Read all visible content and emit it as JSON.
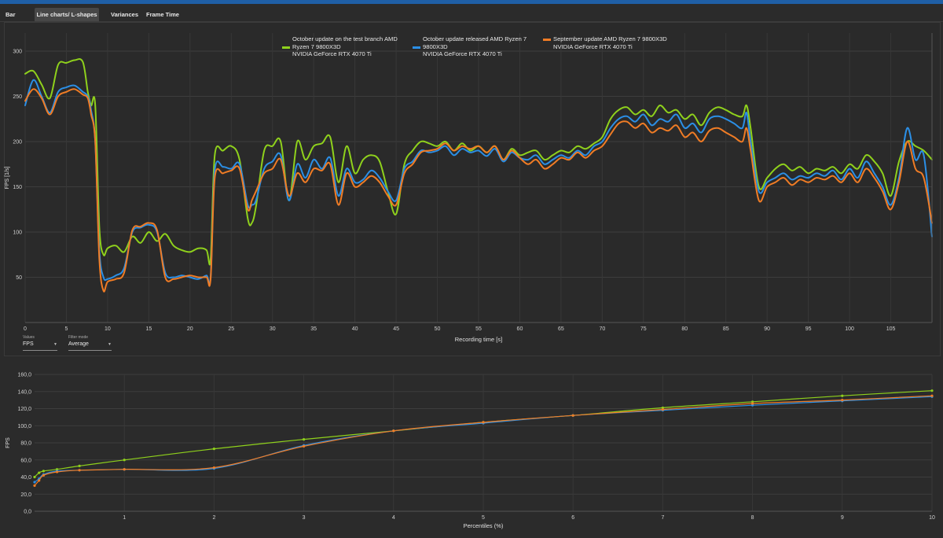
{
  "tabs": [
    "Bar charts",
    "Line charts/ L-shapes",
    "Variances",
    "Frame Time Distribution"
  ],
  "active_tab": 1,
  "controls": {
    "values_label": "Values",
    "values_selected": "FPS",
    "filter_label": "Filter mode",
    "filter_selected": "Average"
  },
  "legend": [
    {
      "lines": [
        "October update on the test branch AMD",
        "Ryzen 7 9800X3D",
        "NVIDIA GeForce RTX 4070 Ti"
      ],
      "color": "#8fd11c"
    },
    {
      "lines": [
        "October update released AMD Ryzen 7",
        "9800X3D",
        "NVIDIA GeForce RTX 4070 Ti"
      ],
      "color": "#2b8fe6"
    },
    {
      "lines": [
        "September update AMD Ryzen 7 9800X3D",
        "NVIDIA GeForce RTX 4070 Ti"
      ],
      "color": "#f07c25"
    }
  ],
  "chart_data": [
    {
      "type": "line",
      "title": "",
      "xlabel": "Recording time [s]",
      "ylabel": "FPS [1/s]",
      "xlim": [
        0,
        110
      ],
      "ylim": [
        0,
        320
      ],
      "xticks": [
        0,
        5,
        10,
        15,
        20,
        25,
        30,
        35,
        40,
        45,
        50,
        55,
        60,
        65,
        70,
        75,
        80,
        85,
        90,
        95,
        100,
        105
      ],
      "yticks": [
        50,
        100,
        150,
        200,
        250,
        300
      ],
      "grid": true,
      "series": [
        {
          "name": "October update on the test branch AMD Ryzen 7 9800X3D NVIDIA GeForce RTX 4070 Ti",
          "color": "#8fd11c",
          "x": [
            0,
            1,
            2,
            3,
            4,
            5,
            6,
            7,
            7.6,
            8,
            8.5,
            9,
            9.5,
            10,
            11,
            12,
            13,
            14,
            15,
            16,
            17,
            18,
            19,
            20,
            21,
            22,
            22.5,
            23,
            24,
            25,
            26,
            27,
            27.5,
            28,
            29,
            30,
            31,
            32,
            33,
            34,
            35,
            36,
            37,
            38,
            39,
            40,
            41,
            42,
            43,
            44,
            45,
            46,
            47,
            48,
            49,
            50,
            51,
            52,
            53,
            54,
            55,
            56,
            57,
            58,
            59,
            60,
            61,
            62,
            63,
            64,
            65,
            66,
            67,
            68,
            69,
            70,
            71,
            72,
            73,
            74,
            75,
            76,
            77,
            78,
            79,
            80,
            81,
            82,
            83,
            84,
            85,
            86,
            87,
            87.5,
            88,
            89,
            90,
            91,
            92,
            93,
            94,
            95,
            96,
            97,
            98,
            99,
            100,
            101,
            102,
            103,
            104,
            105,
            106,
            107,
            108,
            109,
            110
          ],
          "y": [
            275,
            278,
            263,
            248,
            285,
            287,
            290,
            288,
            255,
            240,
            240,
            105,
            75,
            82,
            85,
            78,
            95,
            88,
            100,
            90,
            98,
            85,
            80,
            78,
            82,
            80,
            70,
            185,
            190,
            195,
            180,
            115,
            110,
            128,
            190,
            195,
            200,
            135,
            200,
            180,
            195,
            198,
            205,
            155,
            195,
            165,
            180,
            185,
            178,
            145,
            120,
            175,
            190,
            200,
            198,
            195,
            200,
            190,
            198,
            190,
            195,
            188,
            195,
            180,
            192,
            185,
            188,
            190,
            180,
            185,
            190,
            188,
            195,
            192,
            198,
            205,
            225,
            235,
            238,
            230,
            235,
            228,
            240,
            232,
            235,
            225,
            230,
            218,
            232,
            238,
            235,
            230,
            228,
            240,
            215,
            150,
            160,
            170,
            175,
            168,
            172,
            165,
            170,
            168,
            172,
            165,
            175,
            170,
            185,
            178,
            165,
            140,
            178,
            200,
            195,
            190,
            180
          ],
          "smooth": true
        },
        {
          "name": "October update released AMD Ryzen 7 9800X3D NVIDIA GeForce RTX 4070 Ti",
          "color": "#2b8fe6",
          "x": [
            0,
            1,
            2,
            3,
            4,
            5,
            6,
            7,
            7.6,
            8,
            8.5,
            9,
            9.5,
            10,
            11,
            12,
            13,
            14,
            15,
            16,
            17,
            18,
            19,
            20,
            21,
            22,
            22.5,
            23,
            24,
            25,
            26,
            27,
            27.5,
            28,
            29,
            30,
            31,
            32,
            33,
            34,
            35,
            36,
            37,
            38,
            39,
            40,
            41,
            42,
            43,
            44,
            45,
            46,
            47,
            48,
            49,
            50,
            51,
            52,
            53,
            54,
            55,
            56,
            57,
            58,
            59,
            60,
            61,
            62,
            63,
            64,
            65,
            66,
            67,
            68,
            69,
            70,
            71,
            72,
            73,
            74,
            75,
            76,
            77,
            78,
            79,
            80,
            81,
            82,
            83,
            84,
            85,
            86,
            87,
            87.5,
            88,
            89,
            90,
            91,
            92,
            93,
            94,
            95,
            96,
            97,
            98,
            99,
            100,
            101,
            102,
            103,
            104,
            105,
            106,
            107,
            108,
            109,
            110
          ],
          "y": [
            240,
            268,
            250,
            232,
            255,
            260,
            262,
            255,
            250,
            235,
            200,
            80,
            50,
            48,
            52,
            60,
            100,
            105,
            108,
            100,
            55,
            50,
            52,
            50,
            48,
            52,
            50,
            168,
            172,
            170,
            175,
            130,
            130,
            135,
            170,
            178,
            185,
            135,
            175,
            160,
            180,
            170,
            182,
            140,
            170,
            155,
            158,
            168,
            160,
            145,
            135,
            170,
            178,
            190,
            188,
            190,
            195,
            185,
            192,
            188,
            190,
            184,
            192,
            178,
            188,
            182,
            180,
            185,
            175,
            180,
            185,
            182,
            190,
            185,
            195,
            200,
            215,
            225,
            228,
            222,
            230,
            218,
            225,
            222,
            230,
            215,
            220,
            210,
            225,
            228,
            225,
            220,
            215,
            232,
            200,
            145,
            155,
            160,
            165,
            158,
            162,
            160,
            165,
            162,
            168,
            158,
            170,
            160,
            178,
            165,
            150,
            130,
            160,
            215,
            180,
            185,
            95
          ],
          "smooth": true
        },
        {
          "name": "September update AMD Ryzen 7 9800X3D NVIDIA GeForce RTX 4070 Ti",
          "color": "#f07c25",
          "x": [
            0,
            1,
            2,
            3,
            4,
            5,
            6,
            7,
            7.6,
            8,
            8.5,
            9,
            9.5,
            10,
            11,
            12,
            13,
            14,
            15,
            16,
            17,
            18,
            19,
            20,
            21,
            22,
            22.5,
            23,
            24,
            25,
            26,
            27,
            27.5,
            28,
            29,
            30,
            31,
            32,
            33,
            34,
            35,
            36,
            37,
            38,
            39,
            40,
            41,
            42,
            43,
            44,
            45,
            46,
            47,
            48,
            49,
            50,
            51,
            52,
            53,
            54,
            55,
            56,
            57,
            58,
            59,
            60,
            61,
            62,
            63,
            64,
            65,
            66,
            67,
            68,
            69,
            70,
            71,
            72,
            73,
            74,
            75,
            76,
            77,
            78,
            79,
            80,
            81,
            82,
            83,
            84,
            85,
            86,
            87,
            87.5,
            88,
            89,
            90,
            91,
            92,
            93,
            94,
            95,
            96,
            97,
            98,
            99,
            100,
            101,
            102,
            103,
            104,
            105,
            106,
            107,
            108,
            109,
            110
          ],
          "y": [
            245,
            258,
            248,
            230,
            250,
            255,
            258,
            252,
            248,
            230,
            200,
            70,
            35,
            45,
            48,
            55,
            102,
            106,
            110,
            102,
            50,
            48,
            50,
            52,
            50,
            50,
            48,
            160,
            165,
            168,
            170,
            125,
            135,
            145,
            165,
            170,
            180,
            140,
            165,
            155,
            170,
            168,
            175,
            130,
            165,
            150,
            155,
            162,
            155,
            140,
            130,
            165,
            175,
            188,
            190,
            192,
            198,
            190,
            195,
            192,
            195,
            188,
            195,
            180,
            190,
            182,
            175,
            180,
            170,
            175,
            182,
            180,
            188,
            182,
            190,
            195,
            208,
            220,
            222,
            215,
            220,
            210,
            215,
            212,
            218,
            205,
            210,
            200,
            212,
            215,
            210,
            205,
            200,
            215,
            190,
            135,
            150,
            155,
            160,
            152,
            158,
            155,
            160,
            158,
            162,
            155,
            165,
            155,
            170,
            160,
            145,
            125,
            155,
            200,
            170,
            160,
            110
          ],
          "smooth": true
        }
      ]
    },
    {
      "type": "line",
      "title": "",
      "xlabel": "Percentiles (%)",
      "ylabel": "FPS",
      "xlim": [
        0,
        10
      ],
      "ylim": [
        0,
        160
      ],
      "xticks": [
        1,
        2,
        3,
        4,
        5,
        6,
        7,
        8,
        9,
        10
      ],
      "yticks": [
        0,
        20,
        40,
        60,
        80,
        100,
        120,
        140,
        160
      ],
      "ytick_labels": [
        "0,0",
        "20,0",
        "40,0",
        "60,0",
        "80,0",
        "100,0",
        "120,0",
        "140,0",
        "160,0"
      ],
      "grid": true,
      "series": [
        {
          "name": "October update on the test branch AMD Ryzen 7 9800X3D NVIDIA GeForce RTX 4070 Ti",
          "color": "#8fd11c",
          "x": [
            0,
            0.05,
            0.1,
            0.25,
            0.5,
            1,
            2,
            3,
            4,
            5,
            6,
            7,
            8,
            9,
            10
          ],
          "y": [
            40,
            45,
            47,
            49,
            53,
            60,
            73,
            84,
            94,
            104,
            112,
            121,
            128,
            135,
            141
          ]
        },
        {
          "name": "October update released AMD Ryzen 7 9800X3D NVIDIA GeForce RTX 4070 Ti",
          "color": "#2b8fe6",
          "x": [
            0,
            0.05,
            0.1,
            0.25,
            0.5,
            1,
            2,
            3,
            4,
            5,
            6,
            7,
            8,
            9,
            10
          ],
          "y": [
            34,
            38,
            43,
            47,
            48,
            49,
            50,
            77,
            94,
            103,
            112,
            118,
            124,
            129,
            134
          ]
        },
        {
          "name": "September update AMD Ryzen 7 9800X3D NVIDIA GeForce RTX 4070 Ti",
          "color": "#f07c25",
          "x": [
            0,
            0.05,
            0.1,
            0.25,
            0.5,
            1,
            2,
            3,
            4,
            5,
            6,
            7,
            8,
            9,
            10
          ],
          "y": [
            30,
            36,
            42,
            46,
            48,
            49,
            51,
            76,
            94,
            104,
            112,
            119,
            126,
            130,
            135
          ]
        }
      ]
    }
  ]
}
